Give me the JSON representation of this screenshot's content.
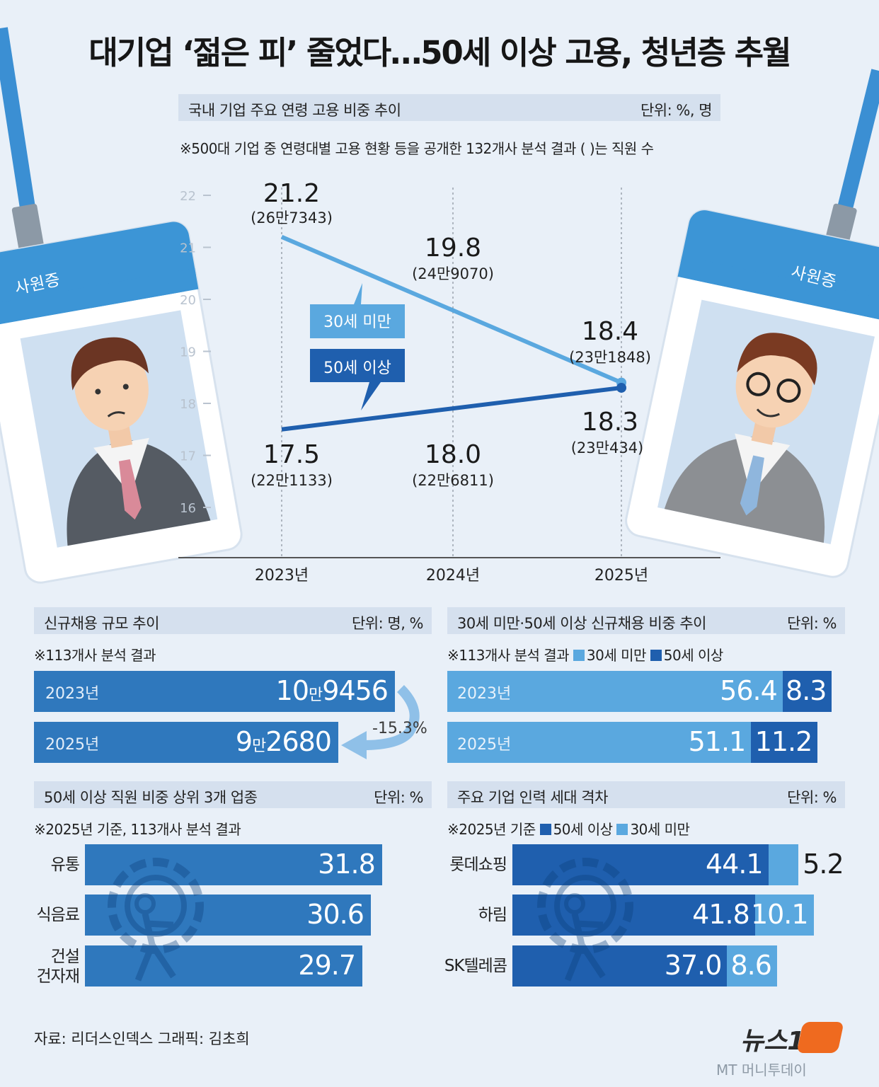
{
  "title": "대기업 ‘젊은 피’ 줄었다…50세 이상 고용, 청년층 추월",
  "colors": {
    "light_blue": "#5aa8df",
    "dark_blue": "#1f5fae",
    "mid_blue": "#2f78bd",
    "header_bg": "#d5e0ee"
  },
  "line_section": {
    "header": "국내 기업 주요 연령 고용 비중 추이",
    "unit": "단위: %, 명",
    "note": "※500대 기업 중 연령대별 고용 현황 등을 공개한 132개사 분석 결과 ( )는 직원 수",
    "tooltip_under30": "30세 미만",
    "tooltip_over50": "50세 이상"
  },
  "badges": {
    "left": "사원증",
    "right": "사원증"
  },
  "new_hire_section": {
    "header": "신규채용 규모 추이",
    "unit": "단위: 명, %",
    "note": "※113개사 분석 결과",
    "rows": [
      {
        "year": "2023년",
        "val_a": "10",
        "val_unit": "만",
        "val_b": "9456",
        "value": 109456
      },
      {
        "year": "2025년",
        "val_a": "9",
        "val_unit": "만",
        "val_b": "2680",
        "value": 92680
      }
    ],
    "change": "-15.3%"
  },
  "share_section": {
    "header": "30세 미만·50세 이상 신규채용 비중 추이",
    "unit": "단위: %",
    "note": "※113개사 분석 결과",
    "legend_under30": "30세 미만",
    "legend_over50": "50세 이상"
  },
  "industry_section": {
    "header": "50세 이상 직원 비중 상위 3개 업종",
    "unit": "단위: %",
    "note": "※2025년 기준, 113개사 분석 결과"
  },
  "generation_section": {
    "header": "주요 기업 인력 세대 격차",
    "unit": "단위: %",
    "note": "※2025년 기준",
    "legend_over50": "50세 이상",
    "legend_under30": "30세 미만"
  },
  "footer": {
    "source": "자료: 리더스인덱스   그래픽: 김초희",
    "logo": "뉴스1",
    "sub_logo": "MT 머니투데이"
  },
  "chart_data": [
    {
      "type": "line",
      "x": [
        "2023년",
        "2024년",
        "2025년"
      ],
      "ylim": [
        16,
        22
      ],
      "yticks": [
        16,
        17,
        18,
        19,
        20,
        21,
        22
      ],
      "series": [
        {
          "name": "30세 미만",
          "values": [
            21.2,
            19.8,
            18.4
          ],
          "labels": [
            "21.2",
            "19.8",
            "18.4"
          ],
          "counts": [
            "(26만7343)",
            "(24만9070)",
            "(23만1848)"
          ]
        },
        {
          "name": "50세 이상",
          "values": [
            17.5,
            18.0,
            18.3
          ],
          "labels": [
            "17.5",
            "18.0",
            "18.3"
          ],
          "counts": [
            "(22만1133)",
            "(22만6811)",
            "(23만434)"
          ]
        }
      ]
    },
    {
      "type": "bar",
      "stacked": true,
      "categories": [
        "2023년",
        "2025년"
      ],
      "series": [
        {
          "name": "30세 미만",
          "values": [
            56.4,
            51.1
          ],
          "labels": [
            "56.4",
            "51.1"
          ]
        },
        {
          "name": "50세 이상",
          "values": [
            8.3,
            11.2
          ],
          "labels": [
            "8.3",
            "11.2"
          ]
        }
      ]
    },
    {
      "type": "bar",
      "orientation": "horizontal",
      "categories": [
        "유통",
        "식음료",
        "건설 건자재"
      ],
      "category_lines": [
        [
          "유통"
        ],
        [
          "식음료"
        ],
        [
          "건설",
          "건자재"
        ]
      ],
      "values": [
        31.8,
        30.6,
        29.7
      ],
      "labels": [
        "31.8",
        "30.6",
        "29.7"
      ]
    },
    {
      "type": "bar",
      "stacked": true,
      "orientation": "horizontal",
      "categories": [
        "롯데쇼핑",
        "하림",
        "SK텔레콤"
      ],
      "series": [
        {
          "name": "50세 이상",
          "values": [
            44.1,
            41.8,
            37.0
          ],
          "labels": [
            "44.1",
            "41.8",
            "37.0"
          ]
        },
        {
          "name": "30세 미만",
          "values": [
            5.2,
            10.1,
            8.6
          ],
          "labels": [
            "5.2",
            "10.1",
            "8.6"
          ]
        }
      ]
    }
  ]
}
